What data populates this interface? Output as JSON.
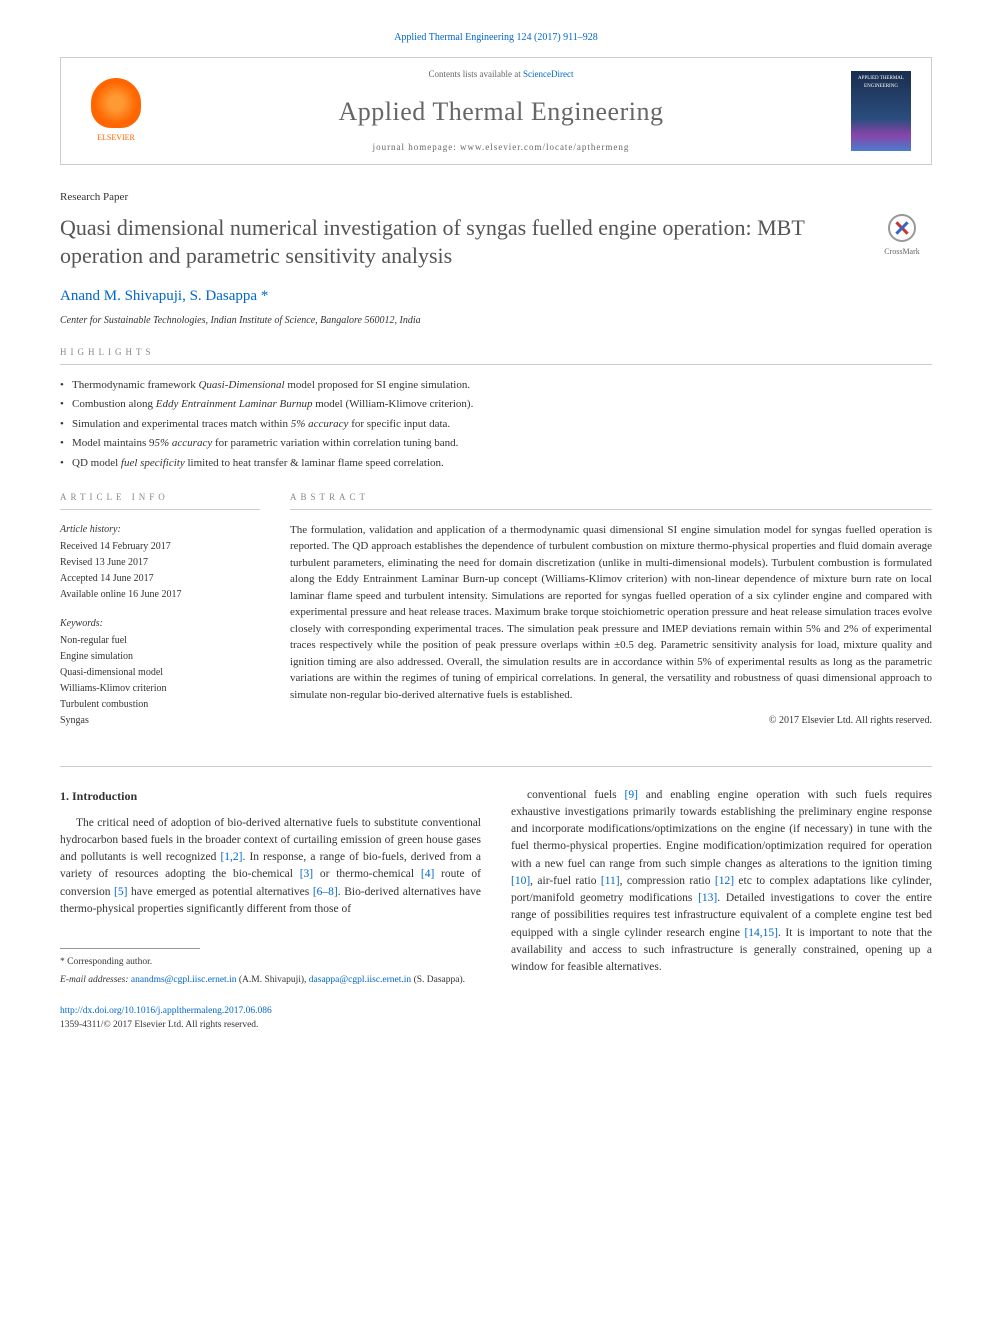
{
  "citation": "Applied Thermal Engineering 124 (2017) 911–928",
  "header": {
    "contents_prefix": "Contents lists available at ",
    "contents_link": "ScienceDirect",
    "journal": "Applied Thermal Engineering",
    "homepage_prefix": "journal homepage: ",
    "homepage_url": "www.elsevier.com/locate/apthermeng",
    "publisher": "ELSEVIER",
    "cover_text": "APPLIED THERMAL ENGINEERING"
  },
  "paper": {
    "type": "Research Paper",
    "title": "Quasi dimensional numerical investigation of syngas fuelled engine operation: MBT operation and parametric sensitivity analysis",
    "authors": "Anand M. Shivapuji, S. Dasappa",
    "asterisk": "*",
    "affiliation": "Center for Sustainable Technologies, Indian Institute of Science, Bangalore 560012, India",
    "crossmark": "CrossMark"
  },
  "highlights": {
    "header": "highlights",
    "items": [
      "Thermodynamic framework Quasi-Dimensional model proposed for SI engine simulation.",
      "Combustion along Eddy Entrainment Laminar Burnup model (William-Klimove criterion).",
      "Simulation and experimental traces match within 5% accuracy for specific input data.",
      "Model maintains 95% accuracy for parametric variation within correlation tuning band.",
      "QD model fuel specificity limited to heat transfer & laminar flame speed correlation."
    ]
  },
  "info": {
    "header": "article info",
    "history_label": "Article history:",
    "received": "Received 14 February 2017",
    "revised": "Revised 13 June 2017",
    "accepted": "Accepted 14 June 2017",
    "online": "Available online 16 June 2017",
    "keywords_label": "Keywords:",
    "keywords": [
      "Non-regular fuel",
      "Engine simulation",
      "Quasi-dimensional model",
      "Williams-Klimov criterion",
      "Turbulent combustion",
      "Syngas"
    ]
  },
  "abstract": {
    "header": "abstract",
    "text": "The formulation, validation and application of a thermodynamic quasi dimensional SI engine simulation model for syngas fuelled operation is reported. The QD approach establishes the dependence of turbulent combustion on mixture thermo-physical properties and fluid domain average turbulent parameters, eliminating the need for domain discretization (unlike in multi-dimensional models). Turbulent combustion is formulated along the Eddy Entrainment Laminar Burn-up concept (Williams-Klimov criterion) with non-linear dependence of mixture burn rate on local laminar flame speed and turbulent intensity. Simulations are reported for syngas fuelled operation of a six cylinder engine and compared with experimental pressure and heat release traces. Maximum brake torque stoichiometric operation pressure and heat release simulation traces evolve closely with corresponding experimental traces. The simulation peak pressure and IMEP deviations remain within 5% and 2% of experimental traces respectively while the position of peak pressure overlaps within ±0.5 deg. Parametric sensitivity analysis for load, mixture quality and ignition timing are also addressed. Overall, the simulation results are in accordance within 5% of experimental results as long as the parametric variations are within the regimes of tuning of empirical correlations. In general, the versatility and robustness of quasi dimensional approach to simulate non-regular bio-derived alternative fuels is established.",
    "copyright": "© 2017 Elsevier Ltd. All rights reserved."
  },
  "intro": {
    "heading": "1. Introduction",
    "col1": "The critical need of adoption of bio-derived alternative fuels to substitute conventional hydrocarbon based fuels in the broader context of curtailing emission of green house gases and pollutants is well recognized [1,2]. In response, a range of bio-fuels, derived from a variety of resources adopting the bio-chemical [3] or thermo-chemical [4] route of conversion [5] have emerged as potential alternatives [6–8]. Bio-derived alternatives have thermo-physical properties significantly different from those of",
    "col2": "conventional fuels [9] and enabling engine operation with such fuels requires exhaustive investigations primarily towards establishing the preliminary engine response and incorporate modifications/optimizations on the engine (if necessary) in tune with the fuel thermo-physical properties. Engine modification/optimization required for operation with a new fuel can range from such simple changes as alterations to the ignition timing [10], air-fuel ratio [11], compression ratio [12] etc to complex adaptations like cylinder, port/manifold geometry modifications [13]. Detailed investigations to cover the entire range of possibilities requires test infrastructure equivalent of a complete engine test bed equipped with a single cylinder research engine [14,15]. It is important to note that the availability and access to such infrastructure is generally constrained, opening up a window for feasible alternatives."
  },
  "footer": {
    "corr": "* Corresponding author.",
    "email_label": "E-mail addresses:",
    "email1": "anandms@cgpl.iisc.ernet.in",
    "email1_name": "(A.M. Shivapuji),",
    "email2": "dasappa@cgpl.iisc.ernet.in",
    "email2_name": "(S. Dasappa).",
    "doi": "http://dx.doi.org/10.1016/j.applthermaleng.2017.06.086",
    "issn": "1359-4311/© 2017 Elsevier Ltd. All rights reserved."
  },
  "colors": {
    "link": "#0066cc",
    "text": "#333333",
    "muted": "#888888",
    "border": "#cccccc",
    "elsevier": "#ff6600"
  }
}
